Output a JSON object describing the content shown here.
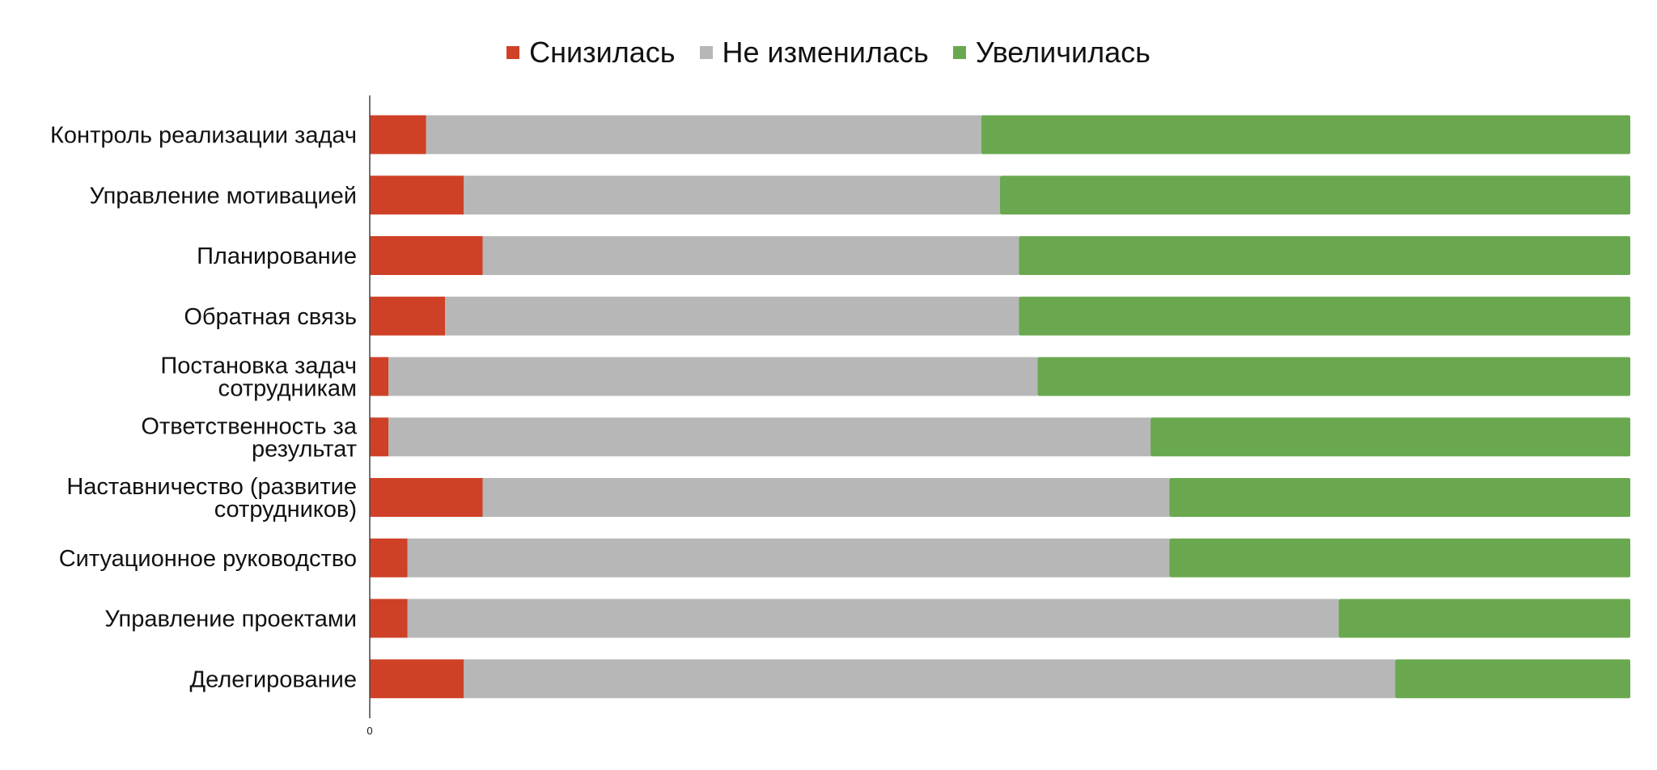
{
  "chart_data": {
    "type": "bar",
    "orientation": "horizontal",
    "stacked": true,
    "categories": [
      [
        "Контроль реализации задач"
      ],
      [
        "Управление мотивацией"
      ],
      [
        "Планирование"
      ],
      [
        "Обратная связь"
      ],
      [
        "Постановка задач",
        "сотрудникам"
      ],
      [
        "Ответственность за",
        "результат"
      ],
      [
        "Наставничество (развитие",
        "сотрудников)"
      ],
      [
        "Ситуационное руководство"
      ],
      [
        "Управление проектами"
      ],
      [
        "Делегирование"
      ]
    ],
    "series": [
      {
        "name": "Снизилась",
        "color": "#cf4127",
        "values": [
          3,
          5,
          6,
          4,
          1,
          1,
          6,
          2,
          2,
          5
        ]
      },
      {
        "name": "Не изменилась",
        "color": "#b7b7b7",
        "values": [
          29.5,
          28.5,
          28.5,
          30.5,
          34.5,
          40.5,
          36.5,
          40.5,
          49.5,
          49.5
        ]
      },
      {
        "name": "Увеличилась",
        "color": "#6aa84f",
        "values": [
          34.5,
          33.5,
          32.5,
          32.5,
          31.5,
          25.5,
          24.5,
          24.5,
          15.5,
          12.5
        ]
      }
    ],
    "xaxis": {
      "tick_labels": [
        "0"
      ]
    },
    "legend": {
      "position": "top"
    },
    "grid": false
  }
}
